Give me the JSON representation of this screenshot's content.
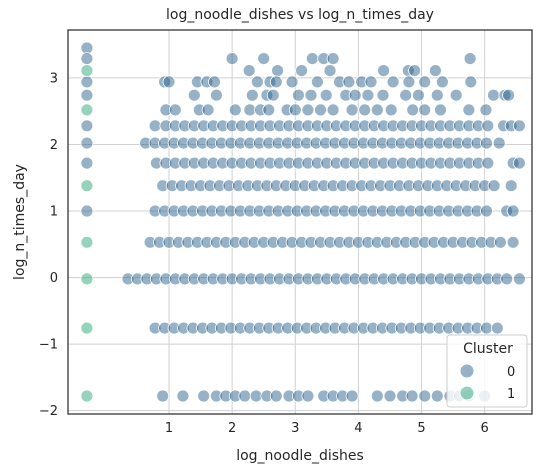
{
  "chart_data": {
    "type": "scatter",
    "title": "log_noodle_dishes vs log_n_times_day",
    "xlabel": "log_noodle_dishes",
    "ylabel": "log_n_times_day",
    "xlim": [
      -0.6,
      6.75
    ],
    "ylim": [
      -2.05,
      3.72
    ],
    "xticks": [
      1,
      2,
      3,
      4,
      5,
      6
    ],
    "yticks": [
      -2,
      -1,
      0,
      1,
      2,
      3
    ],
    "xtick_labels": [
      "1",
      "2",
      "3",
      "4",
      "5",
      "6"
    ],
    "ytick_labels": [
      "−2",
      "−1",
      "0",
      "1",
      "2",
      "3"
    ],
    "grid": true,
    "legend": {
      "title": "Cluster",
      "position": "lower-right",
      "entries": [
        {
          "label": "0",
          "color": "#2f6690"
        },
        {
          "label": "1",
          "color": "#2ca87a"
        }
      ]
    },
    "series": [
      {
        "name": "0",
        "color": "#2f6690",
        "rows": [
          {
            "y": 3.45,
            "xs": [
              -0.3
            ]
          },
          {
            "y": 3.29,
            "xs": [
              -0.3,
              2.0,
              2.5,
              3.27,
              3.45,
              3.6,
              5.77
            ]
          },
          {
            "y": 3.11,
            "xs": [
              2.27,
              2.72,
              3.1,
              3.55,
              4.4,
              4.79,
              4.89,
              5.22
            ]
          },
          {
            "y": 2.94,
            "xs": [
              -0.3,
              0.93,
              1.0,
              1.45,
              1.6,
              1.72,
              2.4,
              2.6,
              2.7,
              2.95,
              3.35,
              3.7,
              3.85,
              4.05,
              4.2,
              4.55,
              4.8,
              5.05,
              5.33,
              5.78
            ]
          },
          {
            "y": 2.74,
            "xs": [
              -0.3,
              1.4,
              1.75,
              2.32,
              2.55,
              2.65,
              3.05,
              3.25,
              3.49,
              3.8,
              3.95,
              4.15,
              4.39,
              4.75,
              4.95,
              5.25,
              5.55,
              6.14,
              6.32,
              6.38
            ]
          },
          {
            "y": 2.52,
            "xs": [
              0.95,
              1.1,
              1.48,
              1.62,
              2.05,
              2.28,
              2.45,
              2.58,
              2.87,
              3.0,
              3.2,
              3.4,
              3.6,
              3.9,
              4.1,
              4.3,
              4.52,
              4.86,
              5.05,
              5.3,
              5.75,
              6.02
            ]
          },
          {
            "y": 2.28,
            "xs": [
              -0.3,
              0.78,
              0.95,
              1.1,
              1.25,
              1.4,
              1.55,
              1.7,
              1.85,
              2.0,
              2.15,
              2.3,
              2.45,
              2.6,
              2.75,
              2.9,
              3.05,
              3.2,
              3.35,
              3.5,
              3.65,
              3.8,
              3.95,
              4.1,
              4.25,
              4.4,
              4.55,
              4.7,
              4.85,
              5.0,
              5.15,
              5.3,
              5.45,
              5.6,
              5.75,
              5.9,
              6.05,
              6.3,
              6.42,
              6.55
            ]
          },
          {
            "y": 2.02,
            "xs": [
              -0.3,
              0.63,
              0.78,
              0.93,
              1.08,
              1.23,
              1.38,
              1.53,
              1.68,
              1.83,
              1.98,
              2.13,
              2.28,
              2.43,
              2.58,
              2.73,
              2.88,
              3.03,
              3.18,
              3.33,
              3.48,
              3.63,
              3.78,
              3.93,
              4.08,
              4.23,
              4.38,
              4.53,
              4.68,
              4.83,
              4.98,
              5.13,
              5.28,
              5.43,
              5.58,
              5.73,
              5.88,
              6.03,
              6.23
            ]
          },
          {
            "y": 1.72,
            "xs": [
              -0.3,
              0.8,
              0.95,
              1.1,
              1.25,
              1.4,
              1.55,
              1.7,
              1.85,
              2.0,
              2.15,
              2.3,
              2.45,
              2.6,
              2.75,
              2.9,
              3.05,
              3.2,
              3.35,
              3.5,
              3.65,
              3.8,
              3.95,
              4.1,
              4.25,
              4.4,
              4.55,
              4.7,
              4.85,
              5.0,
              5.15,
              5.3,
              5.45,
              5.6,
              5.75,
              5.9,
              6.05,
              6.45,
              6.55
            ]
          },
          {
            "y": 1.38,
            "xs": [
              0.9,
              1.05,
              1.2,
              1.35,
              1.5,
              1.65,
              1.8,
              1.95,
              2.1,
              2.25,
              2.4,
              2.55,
              2.7,
              2.85,
              3.0,
              3.15,
              3.3,
              3.45,
              3.6,
              3.75,
              3.9,
              4.05,
              4.2,
              4.35,
              4.5,
              4.65,
              4.8,
              4.95,
              5.1,
              5.25,
              5.4,
              5.55,
              5.7,
              5.85,
              6.0,
              6.15,
              6.42
            ]
          },
          {
            "y": 1.0,
            "xs": [
              -0.3,
              0.78,
              0.93,
              1.08,
              1.23,
              1.38,
              1.53,
              1.68,
              1.83,
              1.98,
              2.13,
              2.28,
              2.43,
              2.58,
              2.73,
              2.88,
              3.03,
              3.18,
              3.33,
              3.48,
              3.63,
              3.78,
              3.93,
              4.08,
              4.23,
              4.38,
              4.53,
              4.68,
              4.83,
              4.98,
              5.13,
              5.28,
              5.43,
              5.58,
              5.73,
              5.88,
              6.03,
              6.35,
              6.45
            ]
          },
          {
            "y": 0.53,
            "xs": [
              0.7,
              0.85,
              1.0,
              1.15,
              1.3,
              1.45,
              1.6,
              1.75,
              1.9,
              2.05,
              2.2,
              2.35,
              2.5,
              2.65,
              2.8,
              2.95,
              3.1,
              3.25,
              3.4,
              3.55,
              3.7,
              3.85,
              4.0,
              4.15,
              4.3,
              4.45,
              4.6,
              4.75,
              4.9,
              5.05,
              5.2,
              5.35,
              5.5,
              5.65,
              5.8,
              5.95,
              6.1,
              6.25,
              6.45
            ]
          },
          {
            "y": -0.02,
            "xs": [
              0.35,
              0.5,
              0.65,
              0.8,
              0.95,
              1.1,
              1.25,
              1.4,
              1.55,
              1.7,
              1.85,
              2.0,
              2.15,
              2.3,
              2.45,
              2.6,
              2.75,
              2.9,
              3.05,
              3.2,
              3.35,
              3.5,
              3.65,
              3.8,
              3.95,
              4.1,
              4.25,
              4.4,
              4.55,
              4.7,
              4.85,
              5.0,
              5.15,
              5.3,
              5.45,
              5.6,
              5.75,
              5.9,
              6.05,
              6.2,
              6.35,
              6.55
            ]
          },
          {
            "y": -0.76,
            "xs": [
              0.78,
              0.93,
              1.08,
              1.23,
              1.38,
              1.53,
              1.68,
              1.83,
              1.98,
              2.13,
              2.28,
              2.43,
              2.58,
              2.73,
              2.88,
              3.03,
              3.18,
              3.33,
              3.48,
              3.63,
              3.78,
              3.93,
              4.08,
              4.23,
              4.38,
              4.53,
              4.68,
              4.83,
              4.98,
              5.13,
              5.28,
              5.43,
              5.58,
              5.73,
              5.88,
              6.03,
              6.2
            ]
          },
          {
            "y": -1.78,
            "xs": [
              0.9,
              1.22,
              1.55,
              1.75,
              1.9,
              2.05,
              2.2,
              2.38,
              2.55,
              2.7,
              2.9,
              3.05,
              3.2,
              3.45,
              3.6,
              3.75,
              3.9,
              4.3,
              4.5,
              4.7,
              4.85,
              5.05,
              5.25,
              5.45,
              5.6,
              5.75,
              6.0
            ]
          }
        ]
      },
      {
        "name": "1",
        "color": "#2ca87a",
        "rows": [
          {
            "y": 3.11,
            "xs": [
              -0.3
            ]
          },
          {
            "y": 2.52,
            "xs": [
              -0.3
            ]
          },
          {
            "y": 1.38,
            "xs": [
              -0.3
            ]
          },
          {
            "y": 0.53,
            "xs": [
              -0.3
            ]
          },
          {
            "y": -0.02,
            "xs": [
              -0.3
            ]
          },
          {
            "y": -0.76,
            "xs": [
              -0.3
            ]
          },
          {
            "y": -1.78,
            "xs": [
              -0.3
            ]
          }
        ]
      }
    ]
  }
}
